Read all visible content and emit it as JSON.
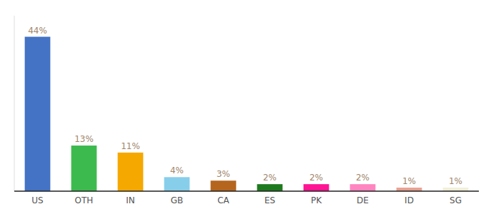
{
  "chart_data": {
    "type": "bar",
    "categories": [
      "US",
      "OTH",
      "IN",
      "GB",
      "CA",
      "ES",
      "PK",
      "DE",
      "ID",
      "SG"
    ],
    "values": [
      44,
      13,
      11,
      4,
      3,
      2,
      2,
      2,
      1,
      1
    ],
    "value_labels": [
      "44%",
      "13%",
      "11%",
      "4%",
      "3%",
      "2%",
      "2%",
      "2%",
      "1%",
      "1%"
    ],
    "colors": [
      "#4472c4",
      "#3dba4e",
      "#f5a800",
      "#87ceeb",
      "#b5651d",
      "#1e7a1e",
      "#ff1493",
      "#ff85c0",
      "#e8a090",
      "#f0eed8"
    ],
    "ylim": [
      0,
      50
    ],
    "grid": false,
    "data_labels": true,
    "tick_labels": "x"
  }
}
